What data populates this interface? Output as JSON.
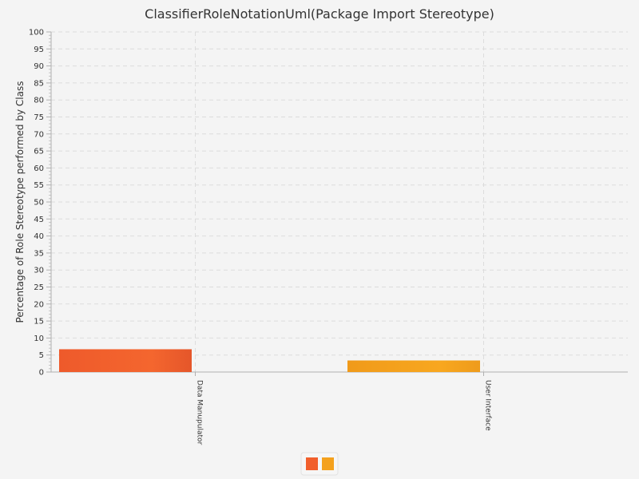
{
  "chart_data": {
    "type": "bar",
    "title": "ClassifierRoleNotationUml(Package Import Stereotype)",
    "xlabel": "",
    "ylabel": "Percentage of Role Stereotype performed by Class",
    "categories": [
      "Data Manupulator",
      "User Interface"
    ],
    "values": [
      6.7,
      3.4
    ],
    "colors": [
      "#f15f2c",
      "#f4a11d"
    ],
    "ylim": [
      0,
      100
    ],
    "ytick_step": 5,
    "grid": true,
    "legend": "bottom-center"
  }
}
